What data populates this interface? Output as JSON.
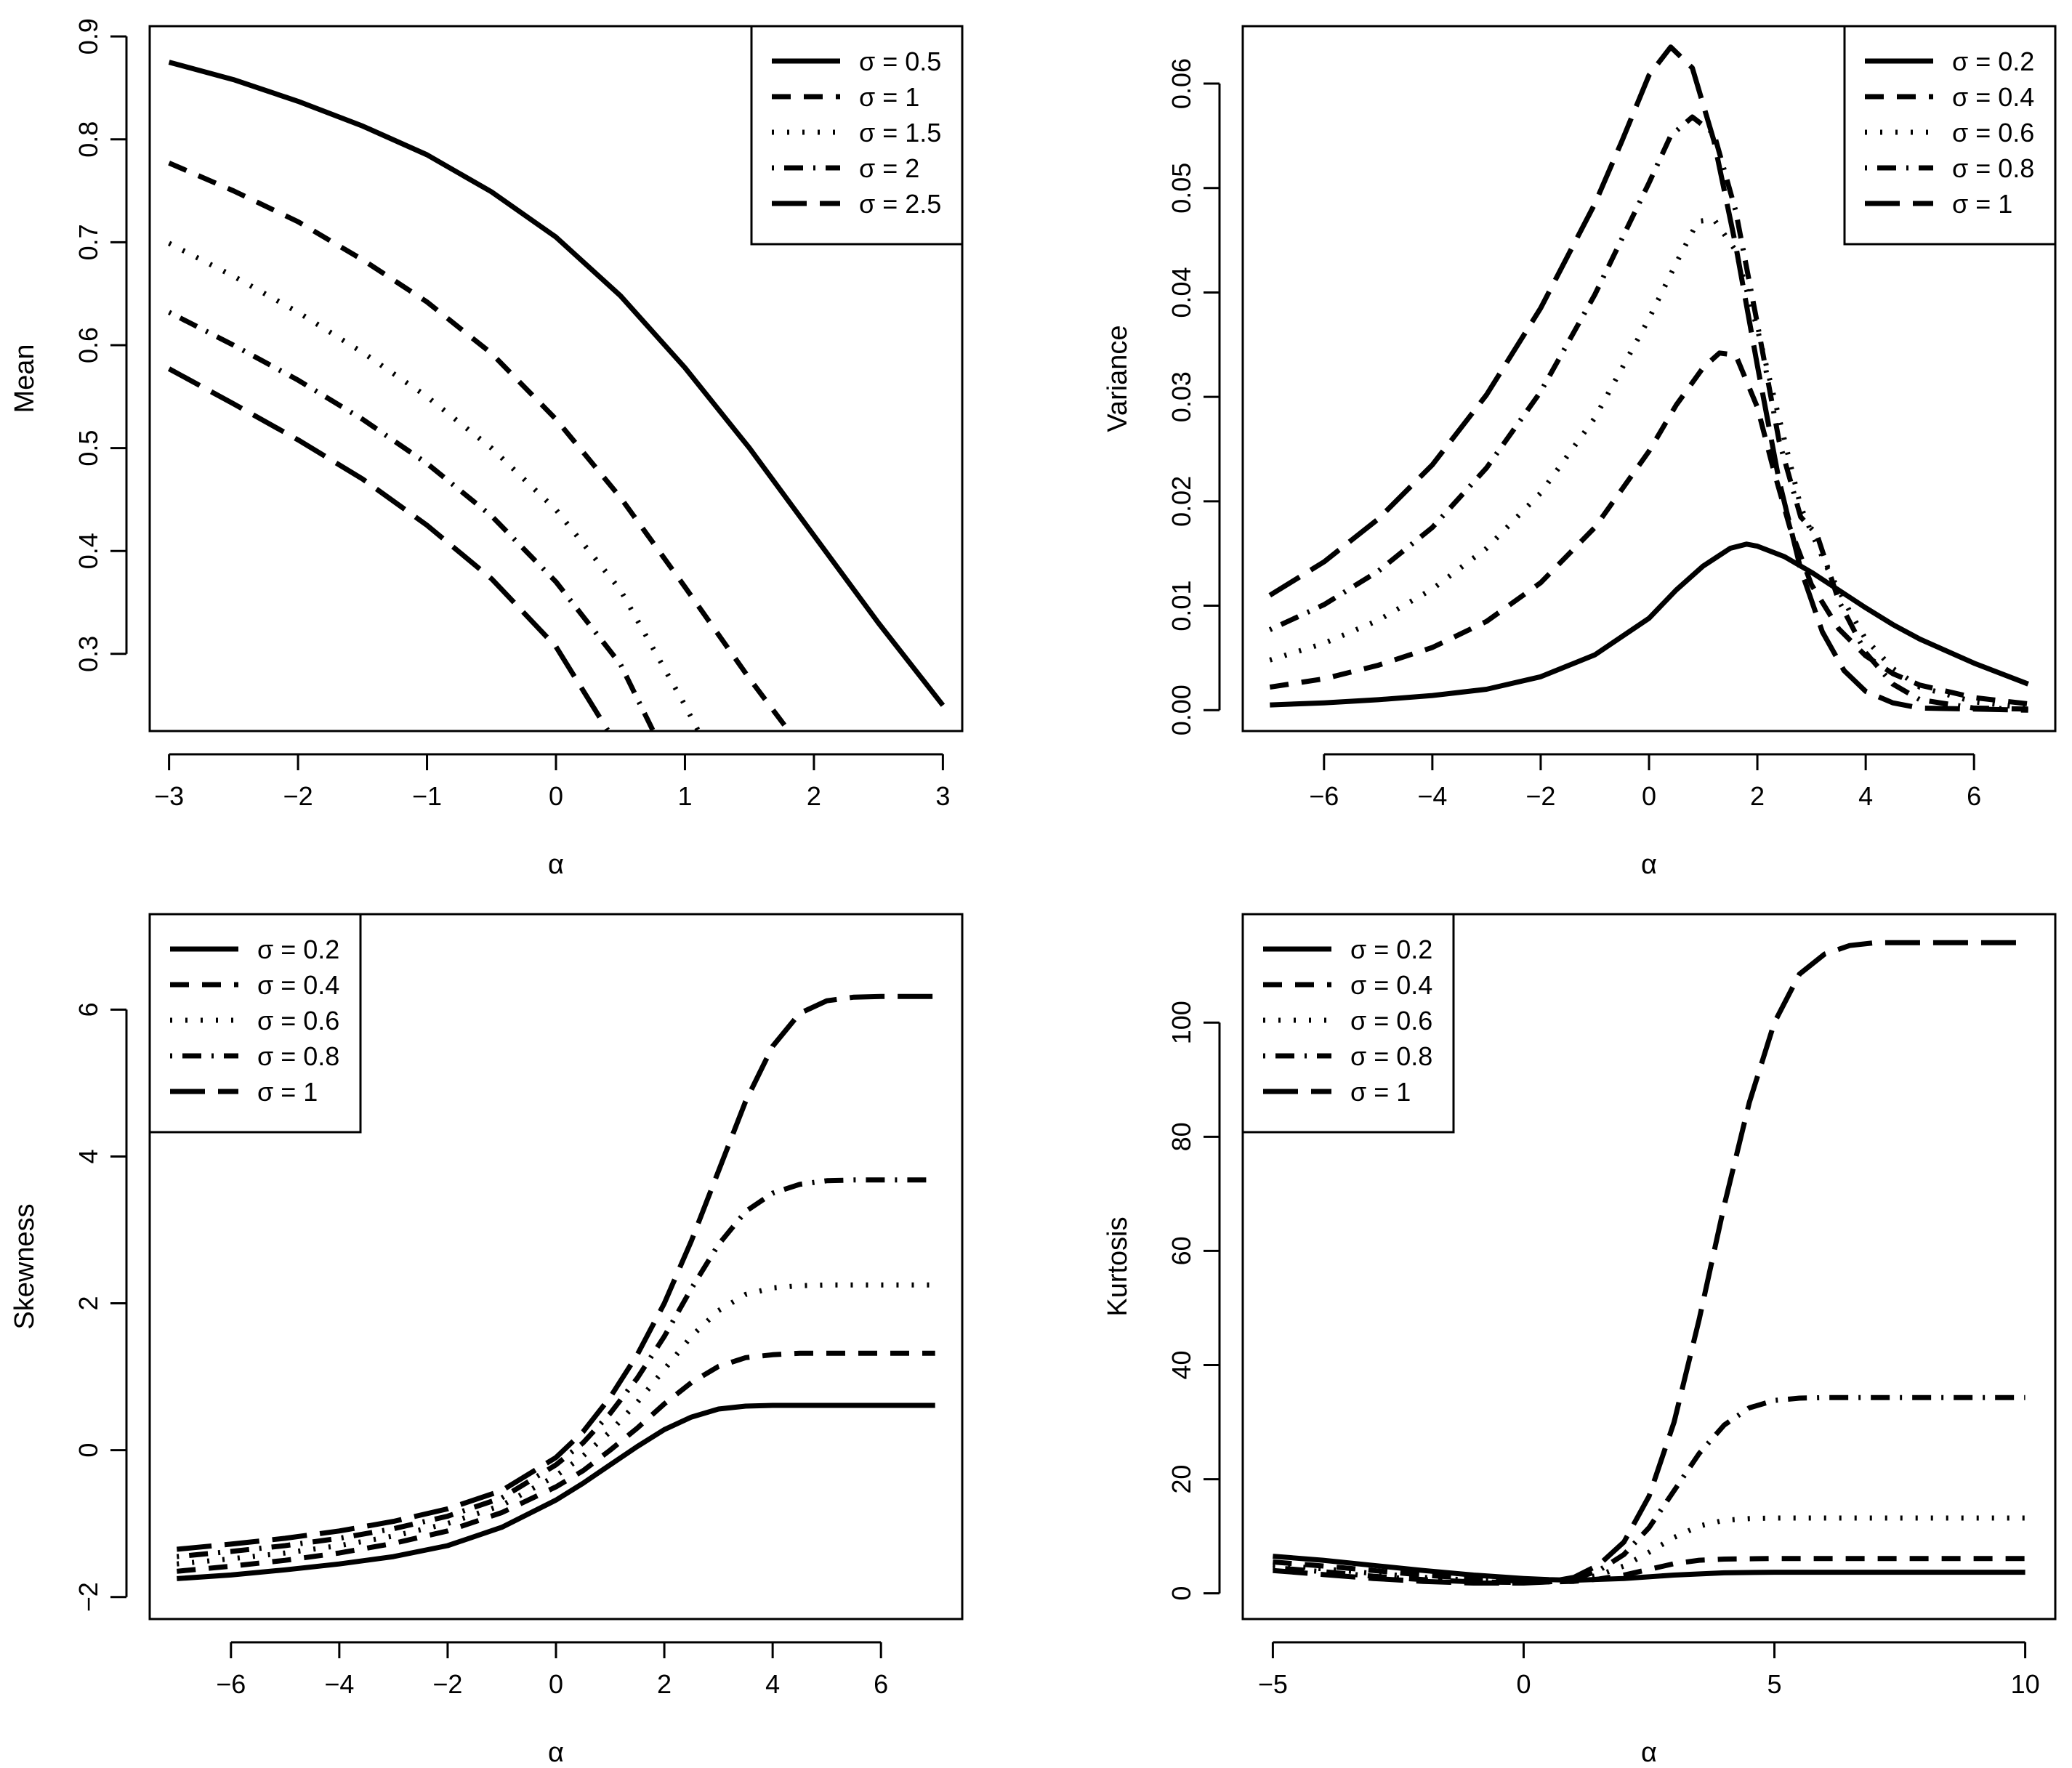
{
  "chart_data": [
    {
      "type": "line",
      "id": "mean",
      "xlabel": "α",
      "ylabel": "Mean",
      "xlim": [
        -3.15,
        3.15
      ],
      "ylim": [
        0.225,
        0.91
      ],
      "xticks": [
        -3,
        -2,
        -1,
        0,
        1,
        2,
        3
      ],
      "xtick_labels": [
        "−3",
        "−2",
        "−1",
        "0",
        "1",
        "2",
        "3"
      ],
      "yticks": [
        0.3,
        0.4,
        0.5,
        0.6,
        0.7,
        0.8,
        0.9
      ],
      "ytick_labels": [
        "0.3",
        "0.4",
        "0.5",
        "0.6",
        "0.7",
        "0.8",
        "0.9"
      ],
      "legend_position": "top-right",
      "series": [
        {
          "name": "σ = 0.5",
          "style": "solid",
          "x": [
            -3,
            -2.5,
            -2,
            -1.5,
            -1,
            -0.5,
            0,
            0.5,
            1,
            1.5,
            2,
            2.5,
            3
          ],
          "values": [
            0.875,
            0.858,
            0.837,
            0.813,
            0.785,
            0.749,
            0.705,
            0.648,
            0.578,
            0.5,
            0.415,
            0.33,
            0.25
          ]
        },
        {
          "name": "σ = 1",
          "style": "dashed",
          "x": [
            -3,
            -2.5,
            -2,
            -1.5,
            -1,
            -0.5,
            0,
            0.5,
            1,
            1.5,
            1.8
          ],
          "values": [
            0.777,
            0.75,
            0.72,
            0.683,
            0.642,
            0.592,
            0.528,
            0.452,
            0.365,
            0.276,
            0.226
          ]
        },
        {
          "name": "σ = 1.5",
          "style": "dotted",
          "x": [
            -3,
            -2.5,
            -2,
            -1.5,
            -1,
            -0.5,
            0,
            0.5,
            1,
            1.1
          ],
          "values": [
            0.699,
            0.667,
            0.632,
            0.593,
            0.55,
            0.5,
            0.44,
            0.362,
            0.25,
            0.226
          ]
        },
        {
          "name": "σ = 2",
          "style": "dotdash",
          "x": [
            -3,
            -2.5,
            -2,
            -1.5,
            -1,
            -0.5,
            0,
            0.5,
            0.75
          ],
          "values": [
            0.632,
            0.6,
            0.566,
            0.528,
            0.485,
            0.434,
            0.37,
            0.29,
            0.226
          ]
        },
        {
          "name": "σ = 2.5",
          "style": "longdash",
          "x": [
            -3,
            -2.5,
            -2,
            -1.5,
            -1,
            -0.5,
            0,
            0.4
          ],
          "values": [
            0.577,
            0.543,
            0.508,
            0.47,
            0.425,
            0.373,
            0.307,
            0.226
          ]
        }
      ]
    },
    {
      "type": "line",
      "id": "variance",
      "xlabel": "α",
      "ylabel": "Variance",
      "xlim": [
        -7.5,
        7.5
      ],
      "ylim": [
        -0.002,
        0.0655
      ],
      "xticks": [
        -6,
        -4,
        -2,
        0,
        2,
        4,
        6
      ],
      "xtick_labels": [
        "−6",
        "−4",
        "−2",
        "0",
        "2",
        "4",
        "6"
      ],
      "yticks": [
        0,
        0.01,
        0.02,
        0.03,
        0.04,
        0.05,
        0.06
      ],
      "ytick_labels": [
        "0.00",
        "0.01",
        "0.02",
        "0.03",
        "0.04",
        "0.05",
        "0.06"
      ],
      "legend_position": "top-right",
      "series": [
        {
          "name": "σ = 0.2",
          "style": "solid",
          "x": [
            -7,
            -6,
            -5,
            -4,
            -3,
            -2,
            -1,
            0,
            0.5,
            1,
            1.5,
            1.8,
            2,
            2.5,
            3,
            3.5,
            4,
            4.5,
            5,
            6,
            7
          ],
          "values": [
            0.0005,
            0.0007,
            0.001,
            0.0014,
            0.002,
            0.0032,
            0.0053,
            0.0088,
            0.0115,
            0.0138,
            0.0155,
            0.0159,
            0.0157,
            0.0147,
            0.0132,
            0.0115,
            0.0098,
            0.0082,
            0.0068,
            0.0045,
            0.0025
          ]
        },
        {
          "name": "σ = 0.4",
          "style": "dashed",
          "x": [
            -7,
            -6,
            -5,
            -4,
            -3,
            -2,
            -1,
            0,
            0.5,
            1,
            1.3,
            1.6,
            2,
            2.3,
            2.6,
            3,
            3.5,
            4,
            4.5,
            5,
            6,
            7
          ],
          "values": [
            0.0022,
            0.003,
            0.0043,
            0.006,
            0.0085,
            0.0122,
            0.0175,
            0.0248,
            0.0292,
            0.0328,
            0.0342,
            0.034,
            0.029,
            0.023,
            0.0175,
            0.012,
            0.0078,
            0.0052,
            0.0035,
            0.0024,
            0.0012,
            0.0006
          ]
        },
        {
          "name": "σ = 0.6",
          "style": "dotted",
          "x": [
            -7,
            -6,
            -5,
            -4,
            -3,
            -2,
            -1,
            0,
            0.5,
            0.9,
            1.2,
            1.6,
            2,
            2.4,
            2.8,
            3,
            3.3,
            3.7,
            4,
            4.5,
            5,
            6,
            7
          ],
          "values": [
            0.0048,
            0.0064,
            0.0086,
            0.0116,
            0.0155,
            0.0208,
            0.028,
            0.0375,
            0.0428,
            0.0468,
            0.047,
            0.044,
            0.0365,
            0.028,
            0.0195,
            0.017,
            0.0135,
            0.0095,
            0.0068,
            0.004,
            0.0022,
            0.0008,
            0.0002
          ]
        },
        {
          "name": "σ = 0.8",
          "style": "dotdash",
          "x": [
            -7,
            -6,
            -5,
            -4,
            -3,
            -2,
            -1,
            0,
            0.4,
            0.8,
            1.2,
            1.6,
            2,
            2.4,
            2.8,
            3.1,
            3.5,
            4,
            4.5,
            5,
            6,
            7
          ],
          "values": [
            0.0077,
            0.0101,
            0.0133,
            0.0175,
            0.0232,
            0.0305,
            0.0398,
            0.0505,
            0.055,
            0.0568,
            0.0552,
            0.0478,
            0.037,
            0.0258,
            0.0185,
            0.0168,
            0.0105,
            0.0055,
            0.0025,
            0.001,
            0.0002,
            0.0001
          ]
        },
        {
          "name": "σ = 1",
          "style": "longdash",
          "x": [
            -7,
            -6,
            -5,
            -4,
            -3,
            -2,
            -1,
            -0.5,
            0,
            0.4,
            0.8,
            1.2,
            1.6,
            2,
            2.4,
            2.8,
            3.2,
            3.6,
            4,
            4.5,
            5,
            6,
            7
          ],
          "values": [
            0.011,
            0.0142,
            0.0183,
            0.0235,
            0.0302,
            0.0385,
            0.0485,
            0.0545,
            0.0608,
            0.0635,
            0.0615,
            0.0545,
            0.0445,
            0.033,
            0.022,
            0.0135,
            0.0075,
            0.0038,
            0.0018,
            0.0007,
            0.0002,
            0.0001,
            0
          ]
        }
      ]
    },
    {
      "type": "line",
      "id": "skewness",
      "xlabel": "α",
      "ylabel": "Skewness",
      "xlim": [
        -7.5,
        7.5
      ],
      "ylim": [
        -2.3,
        7.3
      ],
      "xticks": [
        -6,
        -4,
        -2,
        0,
        2,
        4,
        6
      ],
      "xtick_labels": [
        "−6",
        "−4",
        "−2",
        "0",
        "2",
        "4",
        "6"
      ],
      "yticks": [
        -2,
        0,
        2,
        4,
        6
      ],
      "ytick_labels": [
        "−2",
        "0",
        "2",
        "4",
        "6"
      ],
      "legend_position": "top-left",
      "series": [
        {
          "name": "σ = 0.2",
          "style": "solid",
          "x": [
            -7,
            -6,
            -5,
            -4,
            -3,
            -2,
            -1,
            0,
            0.5,
            1,
            1.5,
            2,
            2.5,
            3,
            3.5,
            4,
            5,
            6,
            7
          ],
          "values": [
            -1.75,
            -1.7,
            -1.63,
            -1.55,
            -1.45,
            -1.3,
            -1.05,
            -0.68,
            -0.45,
            -0.2,
            0.05,
            0.28,
            0.45,
            0.56,
            0.6,
            0.61,
            0.61,
            0.61,
            0.61
          ]
        },
        {
          "name": "σ = 0.4",
          "style": "dashed",
          "x": [
            -7,
            -6,
            -5,
            -4,
            -3,
            -2,
            -1,
            0,
            0.5,
            1,
            1.5,
            2,
            2.5,
            3,
            3.5,
            4,
            4.5,
            5,
            6,
            7
          ],
          "values": [
            -1.65,
            -1.58,
            -1.5,
            -1.4,
            -1.27,
            -1.1,
            -0.85,
            -0.5,
            -0.28,
            0,
            0.3,
            0.63,
            0.92,
            1.14,
            1.26,
            1.3,
            1.32,
            1.32,
            1.32,
            1.32
          ]
        },
        {
          "name": "σ = 0.6",
          "style": "dotted",
          "x": [
            -7,
            -6,
            -5,
            -4,
            -3,
            -2,
            -1,
            0,
            0.5,
            1,
            1.5,
            2,
            2.5,
            3,
            3.5,
            4,
            4.5,
            5,
            6,
            7
          ],
          "values": [
            -1.55,
            -1.48,
            -1.4,
            -1.3,
            -1.17,
            -1.0,
            -0.75,
            -0.35,
            -0.08,
            0.25,
            0.65,
            1.1,
            1.55,
            1.9,
            2.12,
            2.21,
            2.24,
            2.25,
            2.25,
            2.25
          ]
        },
        {
          "name": "σ = 0.8",
          "style": "dotdash",
          "x": [
            -7,
            -6,
            -5,
            -4,
            -3,
            -2,
            -1,
            0,
            0.5,
            1,
            1.5,
            2,
            2.5,
            3,
            3.5,
            4,
            4.5,
            5,
            5.5,
            6,
            7
          ],
          "values": [
            -1.45,
            -1.38,
            -1.3,
            -1.2,
            -1.07,
            -0.9,
            -0.65,
            -0.2,
            0.1,
            0.5,
            0.98,
            1.55,
            2.2,
            2.8,
            3.25,
            3.5,
            3.62,
            3.67,
            3.68,
            3.68,
            3.68
          ]
        },
        {
          "name": "σ = 1",
          "style": "longdash",
          "x": [
            -7,
            -6,
            -5,
            -4,
            -3,
            -2,
            -1,
            0,
            0.5,
            1,
            1.5,
            2,
            2.5,
            3,
            3.5,
            4,
            4.5,
            5,
            5.5,
            6,
            7
          ],
          "values": [
            -1.35,
            -1.28,
            -1.2,
            -1.1,
            -0.97,
            -0.8,
            -0.55,
            -0.1,
            0.25,
            0.72,
            1.3,
            2.0,
            2.85,
            3.8,
            4.75,
            5.5,
            5.95,
            6.12,
            6.17,
            6.18,
            6.18
          ]
        }
      ]
    },
    {
      "type": "line",
      "id": "kurtosis",
      "xlabel": "α",
      "ylabel": "Kurtosis",
      "xlim": [
        -5.6,
        10.6
      ],
      "ylim": [
        -4.5,
        119
      ],
      "xticks": [
        -5,
        0,
        5,
        10
      ],
      "xtick_labels": [
        "−5",
        "0",
        "5",
        "10"
      ],
      "yticks": [
        0,
        20,
        40,
        60,
        80,
        100
      ],
      "ytick_labels": [
        "0",
        "20",
        "40",
        "60",
        "80",
        "100"
      ],
      "legend_position": "top-left",
      "series": [
        {
          "name": "σ = 0.2",
          "style": "solid",
          "x": [
            -5,
            -4,
            -3,
            -2,
            -1,
            0,
            0.5,
            1,
            2,
            3,
            4,
            5,
            6,
            7,
            8,
            9,
            10
          ],
          "values": [
            6.5,
            5.8,
            4.9,
            4.0,
            3.2,
            2.6,
            2.4,
            2.3,
            2.6,
            3.2,
            3.6,
            3.7,
            3.7,
            3.7,
            3.7,
            3.7,
            3.7
          ]
        },
        {
          "name": "σ = 0.4",
          "style": "dashed",
          "x": [
            -5,
            -4,
            -3,
            -2,
            -1,
            0,
            0.5,
            1,
            1.5,
            2,
            2.5,
            3,
            3.5,
            4,
            5,
            6,
            7,
            8,
            9,
            10
          ],
          "values": [
            5.5,
            4.8,
            4.0,
            3.2,
            2.6,
            2.1,
            2.0,
            2.1,
            2.5,
            3.2,
            4.2,
            5.2,
            5.8,
            6.0,
            6.1,
            6.1,
            6.1,
            6.1,
            6.1,
            6.1
          ]
        },
        {
          "name": "σ = 0.6",
          "style": "dotted",
          "x": [
            -5,
            -4,
            -3,
            -2,
            -1,
            0,
            0.5,
            1,
            1.5,
            2,
            2.5,
            3,
            3.5,
            4,
            4.5,
            5,
            6,
            7,
            8,
            9,
            10
          ],
          "values": [
            5.0,
            4.3,
            3.5,
            2.8,
            2.3,
            2.0,
            2.0,
            2.3,
            3.2,
            4.8,
            7.2,
            9.8,
            11.8,
            12.8,
            13.1,
            13.2,
            13.2,
            13.2,
            13.2,
            13.2,
            13.2
          ]
        },
        {
          "name": "σ = 0.8",
          "style": "dotdash",
          "x": [
            -5,
            -4,
            -3,
            -2,
            -1,
            0,
            0.5,
            1,
            1.5,
            2,
            2.5,
            3,
            3.5,
            4,
            4.5,
            5,
            5.5,
            6,
            7,
            8,
            9,
            10
          ],
          "values": [
            4.5,
            3.8,
            3.0,
            2.4,
            2.0,
            1.9,
            2.0,
            2.5,
            4.0,
            6.8,
            11.5,
            18.0,
            24.5,
            29.5,
            32.5,
            33.8,
            34.2,
            34.3,
            34.3,
            34.3,
            34.3,
            34.3
          ]
        },
        {
          "name": "σ = 1",
          "style": "longdash",
          "x": [
            -5,
            -4,
            -3,
            -2,
            -1,
            0,
            0.5,
            1,
            1.5,
            2,
            2.5,
            3,
            3.5,
            4,
            4.5,
            5,
            5.5,
            6,
            6.5,
            7,
            8,
            9,
            10
          ],
          "values": [
            4.0,
            3.3,
            2.6,
            2.1,
            1.8,
            1.8,
            2.0,
            2.8,
            5.0,
            9.0,
            17.0,
            30.0,
            48.0,
            68.0,
            86.0,
            100.0,
            108.5,
            112.0,
            113.5,
            114.0,
            114.0,
            114.0,
            114.0
          ]
        }
      ]
    }
  ]
}
